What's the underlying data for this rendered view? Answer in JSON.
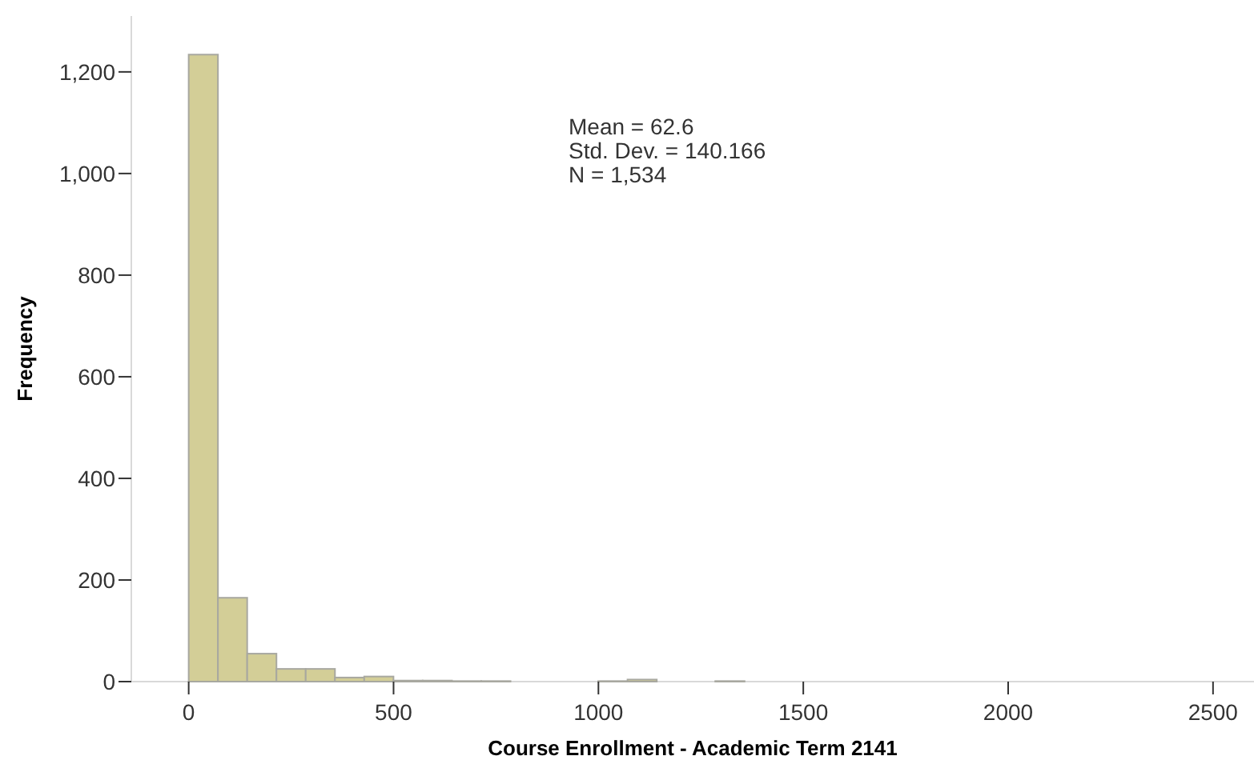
{
  "chart_data": {
    "type": "histogram",
    "xlabel": "Course Enrollment - Academic Term 2141",
    "ylabel": "Frequency",
    "bins": [
      0,
      71.4,
      142.8,
      214.2,
      285.6,
      357,
      428.4,
      499.8,
      571.2,
      642.6,
      714,
      785.4,
      856.8,
      928.2,
      999.6,
      1071,
      1142.4,
      1213.8,
      1285.2,
      1356.6,
      1428,
      1499.4,
      1570.8,
      1642.2,
      1713.6,
      1785,
      1856.4,
      1927.8,
      1999.2,
      2070.6,
      2142,
      2213.4,
      2284.8,
      2356.2,
      2427.6,
      2499,
      2570.4
    ],
    "values": [
      1234,
      165,
      55,
      25,
      25,
      8,
      10,
      2,
      2,
      1,
      1,
      0,
      0,
      0,
      1,
      4,
      0,
      0,
      1,
      0,
      0,
      0,
      0,
      0,
      0,
      0,
      0,
      0,
      0,
      0,
      0,
      0,
      0,
      0,
      0,
      0
    ],
    "color": "#d3ce97",
    "xlim": [
      -140,
      2600
    ],
    "xticks": [
      0,
      500,
      1000,
      1500,
      2000,
      2500
    ],
    "ylim": [
      0,
      1310
    ],
    "yticks": [
      {
        "value": 0,
        "label": "0"
      },
      {
        "value": 200,
        "label": "200"
      },
      {
        "value": 400,
        "label": "400"
      },
      {
        "value": 600,
        "label": "600"
      },
      {
        "value": 800,
        "label": "800"
      },
      {
        "value": 1000,
        "label": "1,000"
      },
      {
        "value": 1200,
        "label": "1,200"
      }
    ],
    "annotations": [
      "Mean = 62.6",
      "Std. Dev. = 140.166",
      "N = 1,534"
    ]
  }
}
